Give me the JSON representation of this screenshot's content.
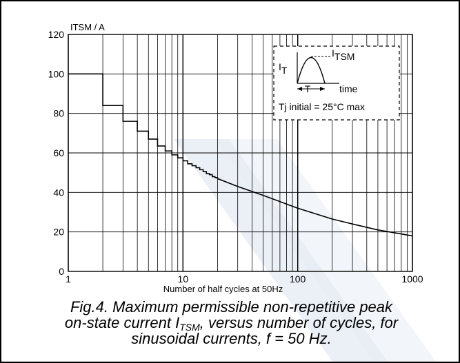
{
  "chart_data": {
    "type": "line",
    "title": "",
    "ylabel": "ITSM / A",
    "xlabel": "Number of half cycles at 50Hz",
    "x_scale": "log",
    "xlim": [
      1,
      1000
    ],
    "ylim": [
      0,
      120
    ],
    "grid": true,
    "x_ticks": [
      1,
      10,
      100,
      1000
    ],
    "x_tick_labels": [
      "1",
      "10",
      "100",
      "1000"
    ],
    "y_ticks": [
      0,
      20,
      40,
      60,
      80,
      100,
      120
    ],
    "y_tick_labels": [
      "0",
      "20",
      "40",
      "60",
      "80",
      "100",
      "120"
    ],
    "series": [
      {
        "x": [
          1,
          2,
          3,
          4,
          5,
          6,
          7,
          8,
          9,
          10,
          11,
          12,
          13,
          14,
          15,
          16,
          17,
          18,
          19,
          20,
          30,
          50,
          100,
          200,
          300,
          500,
          1000
        ],
        "y": [
          100,
          84,
          76,
          71,
          67,
          63.5,
          61,
          59,
          57.5,
          56,
          54.5,
          53.5,
          52.5,
          51.5,
          50.5,
          49.5,
          49,
          48,
          47.5,
          47,
          43,
          38.5,
          32,
          26.5,
          24,
          21,
          18
        ],
        "step_until": 20
      }
    ],
    "inset": {
      "legend_position": "top-right",
      "label_it": "I",
      "label_it_sub": "T",
      "label_itsm": "I",
      "label_itsm_sub": "TSM",
      "label_t": "T",
      "label_time": "time",
      "condition": "Tj initial = 25°C max"
    }
  },
  "caption": {
    "line1": "Fig.4.   Maximum permissible non-repetitive peak",
    "line2_pre": "on-state current I",
    "line2_sub": "TSM",
    "line2_post": ", versus number of cycles, for",
    "line3": "sinusoidal currents, f = 50 Hz."
  }
}
